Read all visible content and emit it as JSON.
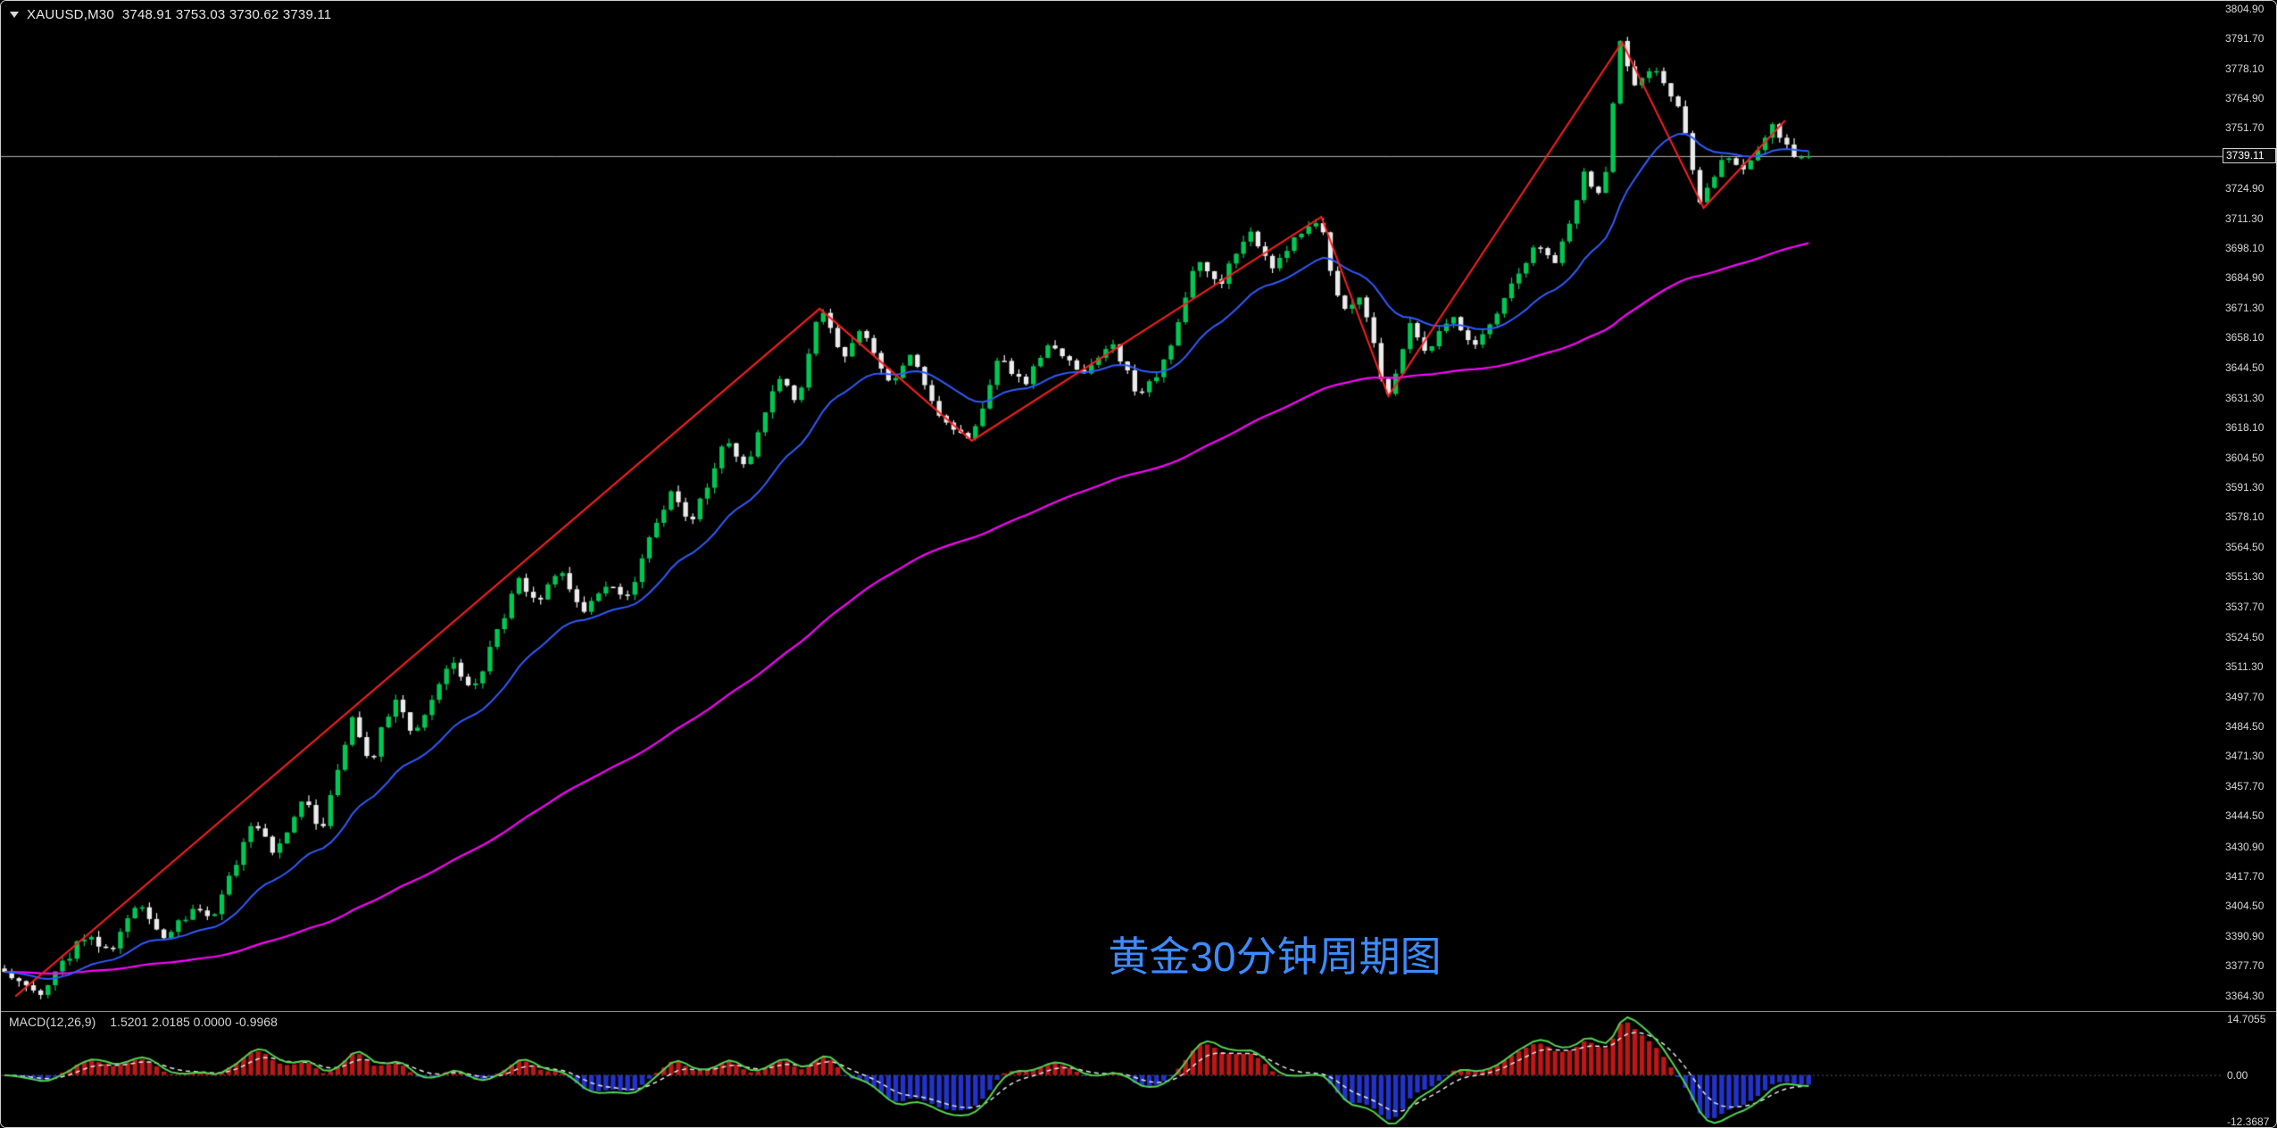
{
  "header": {
    "symbol": "XAUUSD,M30",
    "ohlc": "3748.91 3753.03 3730.62 3739.11"
  },
  "watermark": {
    "text": "黄金30分钟周期图",
    "color": "#3d8bfd"
  },
  "axis": {
    "current_price": "3739.11",
    "price_labels": [
      "3804.90",
      "3791.70",
      "3778.10",
      "3764.90",
      "3751.70",
      "3724.90",
      "3711.30",
      "3698.10",
      "3684.90",
      "3671.30",
      "3658.10",
      "3644.50",
      "3631.30",
      "3618.10",
      "3604.50",
      "3591.30",
      "3578.10",
      "3564.50",
      "3551.30",
      "3537.70",
      "3524.50",
      "3511.30",
      "3497.70",
      "3484.50",
      "3471.30",
      "3457.70",
      "3444.50",
      "3430.90",
      "3417.70",
      "3404.50",
      "3390.90",
      "3377.70",
      "3364.30"
    ]
  },
  "macd": {
    "label": "MACD(12,26,9)",
    "values": [
      "1.5201",
      "2.0185",
      "0.0000",
      "-0.9968"
    ],
    "axis_labels": [
      "14.7055",
      "0.00",
      "-12.3687"
    ]
  },
  "chart_data": {
    "type": "candlestick",
    "symbol": "XAUUSD",
    "timeframe": "M30",
    "title": "黄金30分钟周期图",
    "price_min": 3357.4,
    "price_max": 3808.4,
    "axis_width": 61,
    "main_pane_height": 1132,
    "macd_pane_height": 131,
    "candle_area_frac": 0.815,
    "candle_count": 250,
    "noise": 2.2,
    "wick": 2.8,
    "seed": 20250929,
    "last_close": 3739.11,
    "current_price": 3739.11,
    "ma_fast_period": 18,
    "ma_slow_period": 95,
    "macd_params": {
      "fast": 12,
      "slow": 26,
      "signal": 9,
      "max": 14.7055,
      "min": -12.3687
    },
    "price_path": [
      [
        0.0,
        3377
      ],
      [
        0.018,
        3363
      ],
      [
        0.045,
        3392
      ],
      [
        0.058,
        3383
      ],
      [
        0.075,
        3406
      ],
      [
        0.088,
        3390
      ],
      [
        0.105,
        3404
      ],
      [
        0.115,
        3396
      ],
      [
        0.138,
        3444
      ],
      [
        0.15,
        3427
      ],
      [
        0.165,
        3452
      ],
      [
        0.176,
        3439
      ],
      [
        0.192,
        3488
      ],
      [
        0.203,
        3469
      ],
      [
        0.216,
        3498
      ],
      [
        0.227,
        3479
      ],
      [
        0.247,
        3513
      ],
      [
        0.26,
        3500
      ],
      [
        0.285,
        3551
      ],
      [
        0.296,
        3537
      ],
      [
        0.307,
        3557
      ],
      [
        0.32,
        3535
      ],
      [
        0.332,
        3549
      ],
      [
        0.345,
        3541
      ],
      [
        0.358,
        3568
      ],
      [
        0.37,
        3589
      ],
      [
        0.381,
        3576
      ],
      [
        0.4,
        3613
      ],
      [
        0.411,
        3599
      ],
      [
        0.429,
        3641
      ],
      [
        0.44,
        3629
      ],
      [
        0.452,
        3671
      ],
      [
        0.464,
        3649
      ],
      [
        0.476,
        3661
      ],
      [
        0.49,
        3637
      ],
      [
        0.502,
        3651
      ],
      [
        0.516,
        3625
      ],
      [
        0.536,
        3612
      ],
      [
        0.551,
        3649
      ],
      [
        0.565,
        3636
      ],
      [
        0.58,
        3657
      ],
      [
        0.598,
        3640
      ],
      [
        0.614,
        3657
      ],
      [
        0.629,
        3631
      ],
      [
        0.645,
        3650
      ],
      [
        0.661,
        3693
      ],
      [
        0.674,
        3683
      ],
      [
        0.69,
        3706
      ],
      [
        0.702,
        3688
      ],
      [
        0.716,
        3703
      ],
      [
        0.729,
        3712
      ],
      [
        0.741,
        3667
      ],
      [
        0.752,
        3677
      ],
      [
        0.766,
        3632
      ],
      [
        0.779,
        3663
      ],
      [
        0.79,
        3650
      ],
      [
        0.801,
        3669
      ],
      [
        0.814,
        3653
      ],
      [
        0.83,
        3674
      ],
      [
        0.849,
        3701
      ],
      [
        0.861,
        3692
      ],
      [
        0.875,
        3731
      ],
      [
        0.886,
        3722
      ],
      [
        0.895,
        3790
      ],
      [
        0.903,
        3771
      ],
      [
        0.914,
        3781
      ],
      [
        0.928,
        3762
      ],
      [
        0.94,
        3717
      ],
      [
        0.954,
        3742
      ],
      [
        0.965,
        3731
      ],
      [
        0.98,
        3753
      ],
      [
        0.991,
        3741
      ],
      [
        1.0,
        3737
      ]
    ],
    "zigzag": [
      [
        0.008,
        3364
      ],
      [
        0.452,
        3671
      ],
      [
        0.536,
        3612
      ],
      [
        0.729,
        3712
      ],
      [
        0.766,
        3632
      ],
      [
        0.895,
        3790
      ],
      [
        0.94,
        3716
      ],
      [
        0.985,
        3755
      ]
    ],
    "colors": {
      "background": "#000000",
      "bull": "#00c853",
      "bear": "#ebebeb",
      "ma_fast": "#2e5bff",
      "ma_slow": "#ff00ff",
      "zigzag": "#ff1e1e",
      "price_line": "#b8b8b8",
      "macd_pos": "#bf1616",
      "macd_neg": "#2233cc",
      "macd_line": "#52d452",
      "macd_signal": "#e8e8e8",
      "axis_text": "#d8d8d8",
      "watermark": "#3d8bfd"
    }
  }
}
